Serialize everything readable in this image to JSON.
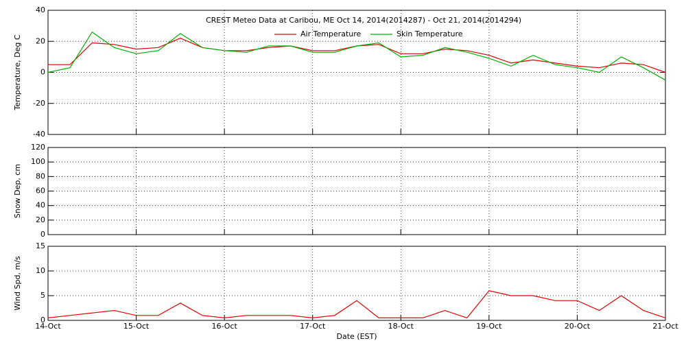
{
  "chart_data": [
    {
      "type": "line",
      "title": "CREST Meteo Data at Caribou, ME   Oct 14, 2014(2014287) - Oct 21, 2014(2014294)",
      "ylabel": "Temperature, Deg C",
      "ylim": [
        -40,
        40
      ],
      "yticks": [
        -40,
        -20,
        0,
        20,
        40
      ],
      "xlim": [
        0,
        7
      ],
      "xticks": [
        0,
        1,
        2,
        3,
        4,
        5,
        6,
        7
      ],
      "grid": true,
      "x": [
        0,
        0.25,
        0.5,
        0.75,
        1,
        1.25,
        1.5,
        1.75,
        2,
        2.25,
        2.5,
        2.75,
        3,
        3.25,
        3.5,
        3.75,
        4,
        4.25,
        4.5,
        4.75,
        5,
        5.25,
        5.5,
        5.75,
        6,
        6.25,
        6.5,
        6.75,
        7
      ],
      "series": [
        {
          "name": "Air Temperature",
          "color": "#e00000",
          "values": [
            5,
            5,
            19,
            18,
            15,
            16,
            22,
            16,
            14,
            14,
            16,
            17,
            14,
            14,
            17,
            18,
            12,
            12,
            15,
            14,
            11,
            6,
            8,
            6,
            4,
            3,
            6,
            5,
            0
          ]
        },
        {
          "name": "Skin Temperature",
          "color": "#00b000",
          "values": [
            0,
            3,
            26,
            16,
            12,
            14,
            25,
            16,
            14,
            13,
            17,
            17,
            13,
            13,
            17,
            19,
            10,
            11,
            16,
            13,
            9,
            4,
            11,
            5,
            3,
            0,
            10,
            3,
            -5
          ]
        }
      ]
    },
    {
      "type": "line",
      "ylabel": "Snow Dep, cm",
      "ylim": [
        0,
        120
      ],
      "yticks": [
        0,
        20,
        40,
        60,
        80,
        100,
        120
      ],
      "xlim": [
        0,
        7
      ],
      "xticks": [
        0,
        1,
        2,
        3,
        4,
        5,
        6,
        7
      ],
      "grid": true
    },
    {
      "type": "line",
      "ylabel": "Wind Spd, m/s",
      "xlabel": "Date (EST)",
      "ylim": [
        0,
        15
      ],
      "yticks": [
        0,
        5,
        10,
        15
      ],
      "xlim": [
        0,
        7
      ],
      "xticks": [
        {
          "value": 0,
          "label": "14-Oct"
        },
        {
          "value": 1,
          "label": "15-Oct"
        },
        {
          "value": 2,
          "label": "16-Oct"
        },
        {
          "value": 3,
          "label": "17-Oct"
        },
        {
          "value": 4,
          "label": "18-Oct"
        },
        {
          "value": 5,
          "label": "19-Oct"
        },
        {
          "value": 6,
          "label": "20-Oct"
        },
        {
          "value": 7,
          "label": "21-Oct"
        }
      ],
      "grid": true,
      "x": [
        0,
        0.25,
        0.5,
        0.75,
        1,
        1.25,
        1.5,
        1.75,
        2,
        2.25,
        2.5,
        2.75,
        3,
        3.25,
        3.5,
        3.75,
        4,
        4.25,
        4.5,
        4.75,
        5,
        5.25,
        5.5,
        5.75,
        6,
        6.25,
        6.5,
        6.75,
        7
      ],
      "series": [
        {
          "color": "#e00000",
          "values": [
            0.5,
            1,
            1.5,
            2,
            1,
            1,
            3.5,
            1,
            0.5,
            1,
            1,
            1,
            0.5,
            1,
            4,
            0.5,
            0.5,
            0.5,
            2,
            0.5,
            6,
            5,
            5,
            4,
            4,
            2,
            5,
            2,
            0.5
          ]
        }
      ]
    }
  ]
}
